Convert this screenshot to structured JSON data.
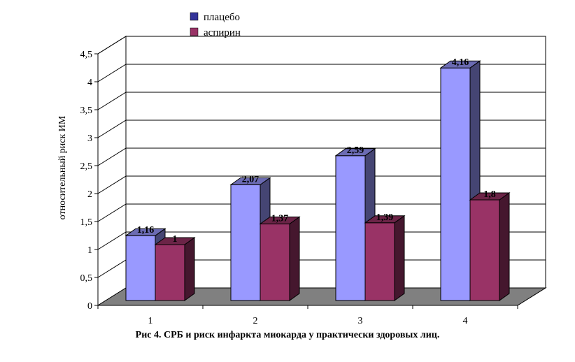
{
  "caption": "Рис 4. СРБ и риск инфаркта миокарда у практически здоровых лиц.",
  "chart_data": {
    "type": "bar",
    "categories": [
      "1",
      "2",
      "3",
      "4"
    ],
    "series": [
      {
        "name": "плацебо",
        "values": [
          1.16,
          2.07,
          2.59,
          4.16
        ],
        "labels": [
          "1,16",
          "2,07",
          "2,59",
          "4,16"
        ],
        "color": "#9999ff"
      },
      {
        "name": "аспирин",
        "values": [
          1,
          1.37,
          1.39,
          1.8
        ],
        "labels": [
          "1",
          "1,37",
          "1,39",
          "1,8"
        ],
        "color": "#993366"
      }
    ],
    "ylabel": "относительный риск ИМ",
    "xlabel": "",
    "ylim": [
      0,
      4.5
    ],
    "yticks": [
      0,
      0.5,
      1,
      1.5,
      2,
      2.5,
      3,
      3.5,
      4,
      4.5
    ],
    "ytick_labels": [
      "0",
      "0,5",
      "1",
      "1,5",
      "2",
      "2,5",
      "3",
      "3,5",
      "4",
      "4,5"
    ],
    "grid": true,
    "legend": "top-center",
    "style": "3d-bar"
  }
}
